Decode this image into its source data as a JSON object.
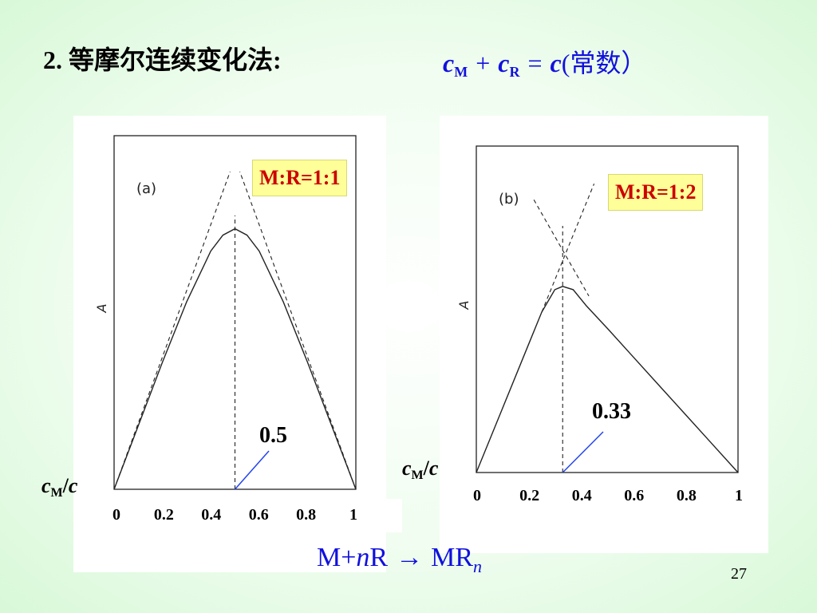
{
  "title": "2. 等摩尔连续变化法:",
  "formula": {
    "c1": "c",
    "sub1": "M",
    "plus": "+",
    "c2": "c",
    "sub2": "R",
    "eq": "=",
    "c3": "c",
    "tail": "(常数）"
  },
  "chart_data": [
    {
      "type": "line",
      "panel_label": "(a)",
      "ylabel": "A",
      "xlabel": "cM/c",
      "xlim": [
        0,
        1
      ],
      "ratio_label": "M:R=1:1",
      "max_label": "0.5",
      "x_ticks": [
        "0",
        "0.2",
        "0.4",
        "0.6",
        "0.8",
        "1"
      ],
      "curve": {
        "x": [
          0,
          0.1,
          0.2,
          0.3,
          0.4,
          0.45,
          0.5,
          0.55,
          0.6,
          0.7,
          0.8,
          0.9,
          1
        ],
        "y": [
          0,
          0.2,
          0.4,
          0.59,
          0.75,
          0.8,
          0.82,
          0.8,
          0.75,
          0.59,
          0.4,
          0.2,
          0
        ]
      },
      "tangents": [
        {
          "x": [
            0,
            0.48
          ],
          "y": [
            0,
            1.0
          ]
        },
        {
          "x": [
            1,
            0.52
          ],
          "y": [
            0,
            1.0
          ]
        }
      ],
      "xmax": 0.5
    },
    {
      "type": "line",
      "panel_label": "(b)",
      "ylabel": "A",
      "xlabel": "cM/c",
      "xlim": [
        0,
        1
      ],
      "ratio_label": "M:R=1:2",
      "max_label": "0.33",
      "x_ticks": [
        "0",
        "0.2",
        "0.4",
        "0.6",
        "0.8",
        "1"
      ],
      "curve": {
        "x": [
          0,
          0.1,
          0.2,
          0.25,
          0.3,
          0.33,
          0.37,
          0.42,
          0.5,
          0.6,
          0.7,
          0.8,
          0.9,
          1
        ],
        "y": [
          0,
          0.2,
          0.4,
          0.5,
          0.57,
          0.58,
          0.57,
          0.52,
          0.45,
          0.36,
          0.27,
          0.18,
          0.09,
          0
        ]
      },
      "tangents": [
        {
          "x": [
            0.25,
            0.45
          ],
          "y": [
            0.5,
            0.9
          ]
        },
        {
          "x": [
            0.22,
            0.43
          ],
          "y": [
            0.85,
            0.55
          ]
        }
      ],
      "xmax": 0.33
    }
  ],
  "bottom_formula": {
    "m": "M",
    "plus": "+",
    "n": "n",
    "r": "R",
    "arrow": "→",
    "mr": "MR",
    "sub_n": "n"
  },
  "page_number": "27",
  "colors": {
    "ratio_text": "#cc0000",
    "ratio_bg": "#ffff99",
    "formula": "#1111dd",
    "pointer": "#2244ee"
  }
}
